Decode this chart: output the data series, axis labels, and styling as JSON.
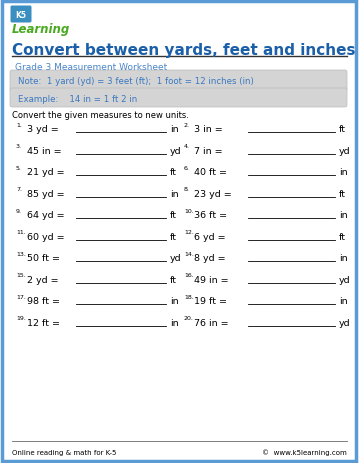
{
  "title": "Convert between yards, feet and inches",
  "subtitle": "Grade 3 Measurement Worksheet",
  "note": "Note:  1 yard (yd) = 3 feet (ft);  1 foot = 12 inches (in)",
  "example": "Example:    14 in = 1 ft 2 in",
  "instruction": "Convert the given measures to new units.",
  "border_color": "#5b9bd5",
  "title_color": "#1a5fa8",
  "subtitle_color": "#4a86c8",
  "note_bg": "#d4d4d4",
  "example_bg": "#d4d4d4",
  "note_text_color": "#3a78c0",
  "example_text_color": "#3a78c0",
  "problems": [
    {
      "num": "1.",
      "question": "3 yd =",
      "unit": "in",
      "col": 0
    },
    {
      "num": "2.",
      "question": "3 in =",
      "unit": "ft",
      "col": 1
    },
    {
      "num": "3.",
      "question": "45 in =",
      "unit": "yd",
      "col": 0
    },
    {
      "num": "4.",
      "question": "7 in =",
      "unit": "yd",
      "col": 1
    },
    {
      "num": "5.",
      "question": "21 yd =",
      "unit": "ft",
      "col": 0
    },
    {
      "num": "6.",
      "question": "40 ft =",
      "unit": "in",
      "col": 1
    },
    {
      "num": "7.",
      "question": "85 yd =",
      "unit": "in",
      "col": 0
    },
    {
      "num": "8.",
      "question": "23 yd =",
      "unit": "ft",
      "col": 1
    },
    {
      "num": "9.",
      "question": "64 yd =",
      "unit": "ft",
      "col": 0
    },
    {
      "num": "10.",
      "question": "36 ft =",
      "unit": "in",
      "col": 1
    },
    {
      "num": "11.",
      "question": "60 yd =",
      "unit": "ft",
      "col": 0
    },
    {
      "num": "12.",
      "question": "6 yd =",
      "unit": "ft",
      "col": 1
    },
    {
      "num": "13.",
      "question": "50 ft =",
      "unit": "yd",
      "col": 0
    },
    {
      "num": "14.",
      "question": "8 yd =",
      "unit": "in",
      "col": 1
    },
    {
      "num": "15.",
      "question": "2 yd =",
      "unit": "ft",
      "col": 0
    },
    {
      "num": "16.",
      "question": "49 in =",
      "unit": "yd",
      "col": 1
    },
    {
      "num": "17.",
      "question": "98 ft =",
      "unit": "in",
      "col": 0
    },
    {
      "num": "18.",
      "question": "19 ft =",
      "unit": "in",
      "col": 1
    },
    {
      "num": "19.",
      "question": "12 ft =",
      "unit": "in",
      "col": 0
    },
    {
      "num": "20.",
      "question": "76 in =",
      "unit": "yd",
      "col": 1
    }
  ],
  "footer_left": "Online reading & math for K-5",
  "footer_right": "©  www.k5learning.com"
}
